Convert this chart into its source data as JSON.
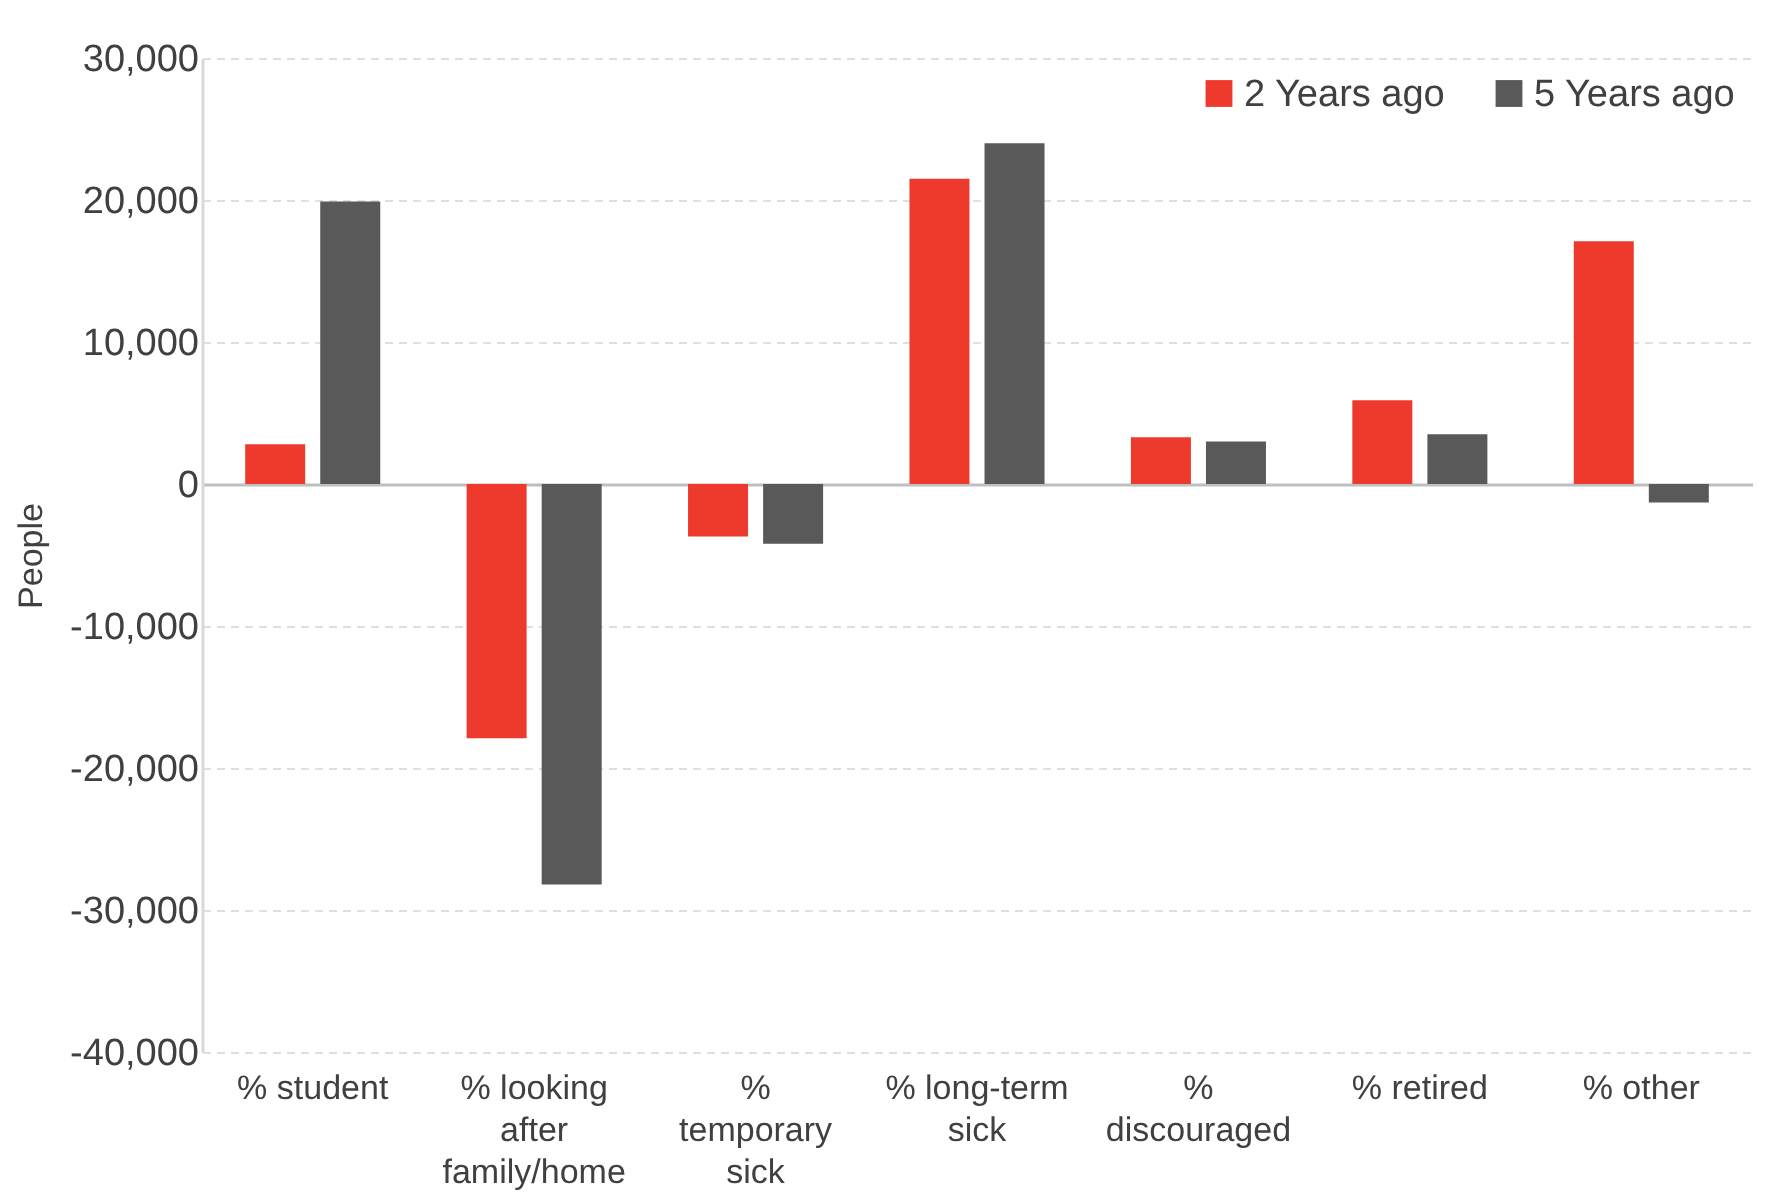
{
  "chart_data": {
    "type": "bar",
    "ylabel": "People",
    "categories": [
      "% student",
      "% looking after family/home",
      "% temporary sick",
      "% long-term sick",
      "% discouraged",
      "% retired",
      "% other"
    ],
    "series": [
      {
        "name": "2 Years ago",
        "color": "#ee3a2c",
        "values": [
          2800,
          -17900,
          -3700,
          21500,
          3300,
          5900,
          17100
        ]
      },
      {
        "name": "5 Years ago",
        "color": "#595959",
        "values": [
          19900,
          -28200,
          -4200,
          24000,
          3000,
          3500,
          -1300
        ]
      }
    ],
    "ylim": [
      -40000,
      30000
    ],
    "yticks": [
      {
        "value": -40000,
        "label": "-40,000"
      },
      {
        "value": -30000,
        "label": "-30,000"
      },
      {
        "value": -20000,
        "label": "-20,000"
      },
      {
        "value": -10000,
        "label": "-10,000"
      },
      0,
      {
        "value": 10000,
        "label": "10,000"
      },
      {
        "value": 20000,
        "label": "20,000"
      },
      {
        "value": 30000,
        "label": "30,000"
      }
    ],
    "grid": "y",
    "legend": "top right"
  }
}
